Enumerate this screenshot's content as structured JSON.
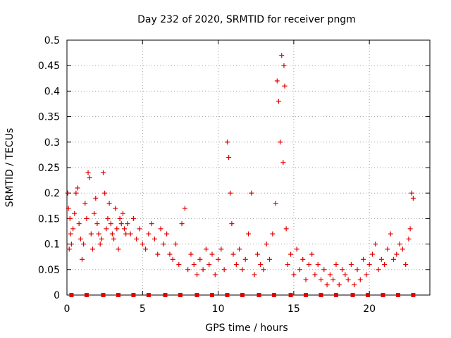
{
  "chart_data": {
    "type": "scatter",
    "title": "Day 232 of 2020, SRMTID for receiver pngm",
    "xlabel": "GPS time / hours",
    "ylabel": "SRMTID / TECUs",
    "xlim": [
      0,
      24
    ],
    "ylim": [
      0,
      0.5
    ],
    "x_ticks": [
      0,
      5,
      10,
      15,
      20
    ],
    "x_tick_labels": [
      "0",
      "5",
      "10",
      "15",
      "20"
    ],
    "y_ticks": [
      0,
      0.05,
      0.1,
      0.15,
      0.2,
      0.25,
      0.3,
      0.35,
      0.4,
      0.45,
      0.5
    ],
    "y_tick_labels": [
      "0",
      "0.05",
      "0.1",
      "0.15",
      "0.2",
      "0.25",
      "0.3",
      "0.35",
      "0.4",
      "0.45",
      "0.5"
    ],
    "grid": true,
    "marker": "+",
    "color": "#e00000",
    "series": [
      {
        "name": "SRMTID",
        "x": [
          0.05,
          0.1,
          0.15,
          0.2,
          0.25,
          0.3,
          0.4,
          0.5,
          0.6,
          0.7,
          0.8,
          0.9,
          1.0,
          1.1,
          1.2,
          1.3,
          1.4,
          1.5,
          1.6,
          1.7,
          1.8,
          1.9,
          2.0,
          2.1,
          2.2,
          2.3,
          2.4,
          2.5,
          2.6,
          2.7,
          2.8,
          2.9,
          3.0,
          3.1,
          3.2,
          3.3,
          3.4,
          3.5,
          3.6,
          3.7,
          3.8,
          3.9,
          4.0,
          4.2,
          4.4,
          4.6,
          4.8,
          5.0,
          5.2,
          5.4,
          5.6,
          5.8,
          6.0,
          6.2,
          6.4,
          6.6,
          6.8,
          7.0,
          7.2,
          7.4,
          7.6,
          7.8,
          8.0,
          8.2,
          8.4,
          8.6,
          8.8,
          9.0,
          9.2,
          9.4,
          9.6,
          9.8,
          10.0,
          10.2,
          10.4,
          10.6,
          10.7,
          10.8,
          10.9,
          11.0,
          11.2,
          11.4,
          11.6,
          11.8,
          12.0,
          12.2,
          12.4,
          12.6,
          12.8,
          13.0,
          13.2,
          13.4,
          13.6,
          13.8,
          13.9,
          14.0,
          14.1,
          14.2,
          14.3,
          14.35,
          14.4,
          14.5,
          14.6,
          14.8,
          15.0,
          15.2,
          15.4,
          15.6,
          15.8,
          16.0,
          16.2,
          16.4,
          16.6,
          16.8,
          17.0,
          17.2,
          17.4,
          17.6,
          17.8,
          18.0,
          18.2,
          18.4,
          18.6,
          18.8,
          19.0,
          19.2,
          19.4,
          19.6,
          19.8,
          20.0,
          20.2,
          20.4,
          20.6,
          20.8,
          21.0,
          21.2,
          21.4,
          21.6,
          21.8,
          22.0,
          22.2,
          22.4,
          22.6,
          22.7,
          22.8,
          22.9
        ],
        "y": [
          0.2,
          0.17,
          0.09,
          0.15,
          0.12,
          0.1,
          0.13,
          0.16,
          0.2,
          0.21,
          0.14,
          0.11,
          0.07,
          0.1,
          0.18,
          0.15,
          0.24,
          0.23,
          0.12,
          0.09,
          0.16,
          0.19,
          0.14,
          0.12,
          0.1,
          0.11,
          0.24,
          0.2,
          0.13,
          0.15,
          0.18,
          0.14,
          0.12,
          0.11,
          0.17,
          0.13,
          0.09,
          0.15,
          0.14,
          0.16,
          0.13,
          0.12,
          0.14,
          0.12,
          0.15,
          0.11,
          0.13,
          0.1,
          0.09,
          0.12,
          0.14,
          0.11,
          0.08,
          0.13,
          0.1,
          0.12,
          0.08,
          0.07,
          0.1,
          0.06,
          0.14,
          0.17,
          0.05,
          0.08,
          0.06,
          0.04,
          0.07,
          0.05,
          0.09,
          0.06,
          0.08,
          0.04,
          0.07,
          0.09,
          0.05,
          0.3,
          0.27,
          0.2,
          0.14,
          0.08,
          0.06,
          0.09,
          0.05,
          0.07,
          0.12,
          0.2,
          0.04,
          0.08,
          0.06,
          0.05,
          0.1,
          0.07,
          0.12,
          0.18,
          0.42,
          0.38,
          0.3,
          0.47,
          0.26,
          0.45,
          0.41,
          0.13,
          0.06,
          0.08,
          0.04,
          0.09,
          0.05,
          0.07,
          0.03,
          0.06,
          0.08,
          0.04,
          0.06,
          0.03,
          0.05,
          0.02,
          0.04,
          0.03,
          0.06,
          0.02,
          0.05,
          0.04,
          0.03,
          0.06,
          0.02,
          0.05,
          0.03,
          0.07,
          0.04,
          0.06,
          0.08,
          0.1,
          0.05,
          0.07,
          0.06,
          0.09,
          0.12,
          0.07,
          0.08,
          0.1,
          0.09,
          0.06,
          0.11,
          0.13,
          0.2,
          0.19
        ]
      }
    ],
    "gap_markers_x": [
      0.3,
      1.3,
      2.4,
      3.4,
      4.4,
      5.4,
      6.5,
      7.5,
      8.6,
      9.6,
      10.6,
      11.6,
      12.7,
      13.7,
      14.8,
      15.8,
      16.8,
      17.8,
      18.9,
      19.9,
      20.9,
      21.9,
      22.9
    ]
  }
}
